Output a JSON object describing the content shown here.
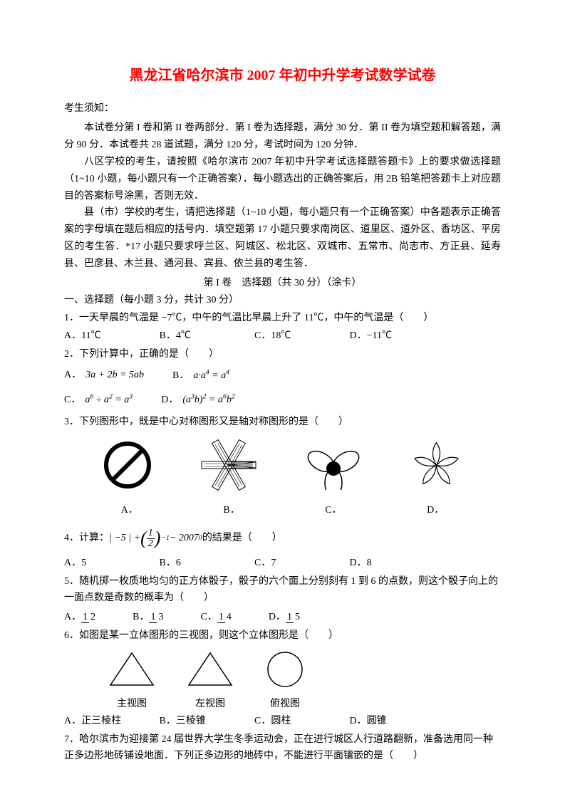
{
  "title": "黑龙江省哈尔滨市 2007 年初中升学考试数学试卷",
  "notice_label": "考生须知：",
  "para1": "本试卷分第 I 卷和第 II 卷两部分．第 I 卷为选择题，满分 30 分．第 II 卷为填空题和解答题，满分 90 分．本试卷共 28 道试题，满分 120 分，考试时间为 120 分钟．",
  "para2": "八区学校的考生，请按照《哈尔滨市 2007 年初中升学考试选择题答题卡》上的要求做选择题（1~10 小题，每小题只有一个正确答案）．每小题选出的正确答案后，用 2B 铅笔把答题卡上对应题目的答案标号涂黑，否则无效．",
  "para3": "县（市）学校的考生，请把选择题（1~10 小题，每小题只有一个正确答案）中各题表示正确答案的字母填在题后相应的括号内．填空题第 17 小题只要求南岗区、道里区、道外区、香坊区、平房区的考生答．*17 小题只要求呼兰区、阿城区、松北区、双城市、五常市、尚志市、方正县、延寿县、巴彦县、木兰县、通河县、宾县、依兰县的考生答．",
  "section1_header": "第 I 卷　选择题（共 30 分）（涂卡）",
  "section1_sub": "一、选择题（每小题 3 分，共计 30 分）",
  "q1": {
    "text": "1．一天早晨的气温是 −7℃，中午的气温比早晨上升了 11℃，中午的气温是（　　）",
    "a": "A．11℃",
    "b": "B．4℃",
    "c": "C．18℃",
    "d": "D．−11℃"
  },
  "q2": {
    "text": "2．下列计算中，正确的是（　　）",
    "a_label": "A．",
    "a_math": "3a + 2b = 5ab",
    "b_label": "B．",
    "b_math_html": "a·a<sup>4</sup> = a<sup>4</sup>",
    "c_label": "C．",
    "c_math_html": "a<sup>6</sup> ÷ a<sup>2</sup> = a<sup>3</sup>",
    "d_label": "D．",
    "d_math_html": "(a<sup>3</sup>b)<sup>2</sup> = a<sup>6</sup>b<sup>2</sup>"
  },
  "q3": {
    "text": "3．下列图形中，既是中心对称图形又是轴对称图形的是（　　）",
    "labels": {
      "a": "A．",
      "b": "B．",
      "c": "C．",
      "d": "D．"
    }
  },
  "q4": {
    "prefix": "4．计算：",
    "suffix": " 的结果是（　　）",
    "a": "A．5",
    "b": "B．6",
    "c": "C．7",
    "d": "D．8"
  },
  "q5": {
    "text": "5．随机掷一枚质地均匀的正方体骰子，骰子的六个面上分别刻有 1 到 6 的点数，则这个骰子向上的一面点数是奇数的概率为（　　）",
    "labels": {
      "a": "A．",
      "b": "B．",
      "c": "C．",
      "d": "D．"
    },
    "fracs": {
      "a": {
        "num": "1",
        "den": "2"
      },
      "b": {
        "num": "1",
        "den": "3"
      },
      "c": {
        "num": "1",
        "den": "4"
      },
      "d": {
        "num": "1",
        "den": "5"
      }
    }
  },
  "q6": {
    "text": "6．如图是某一立体图形的三视图，则这个立体图形是（　　）",
    "views": {
      "front": "主视图",
      "left": "左视图",
      "top": "俯视图"
    },
    "a": "A．正三棱柱",
    "b": "B．三棱锥",
    "c": "C．圆柱",
    "d": "D．圆锥"
  },
  "q7": {
    "text": "7．哈尔滨市为迎接第 24 届世界大学生冬季运动会，正在进行城区人行道路翻新，准备选用同一种正多边形地砖铺设地面．下列正多边形的地砖中，不能进行平面镶嵌的是（　　）"
  },
  "colors": {
    "title": "#ff0000",
    "text": "#000000",
    "background": "#ffffff"
  }
}
